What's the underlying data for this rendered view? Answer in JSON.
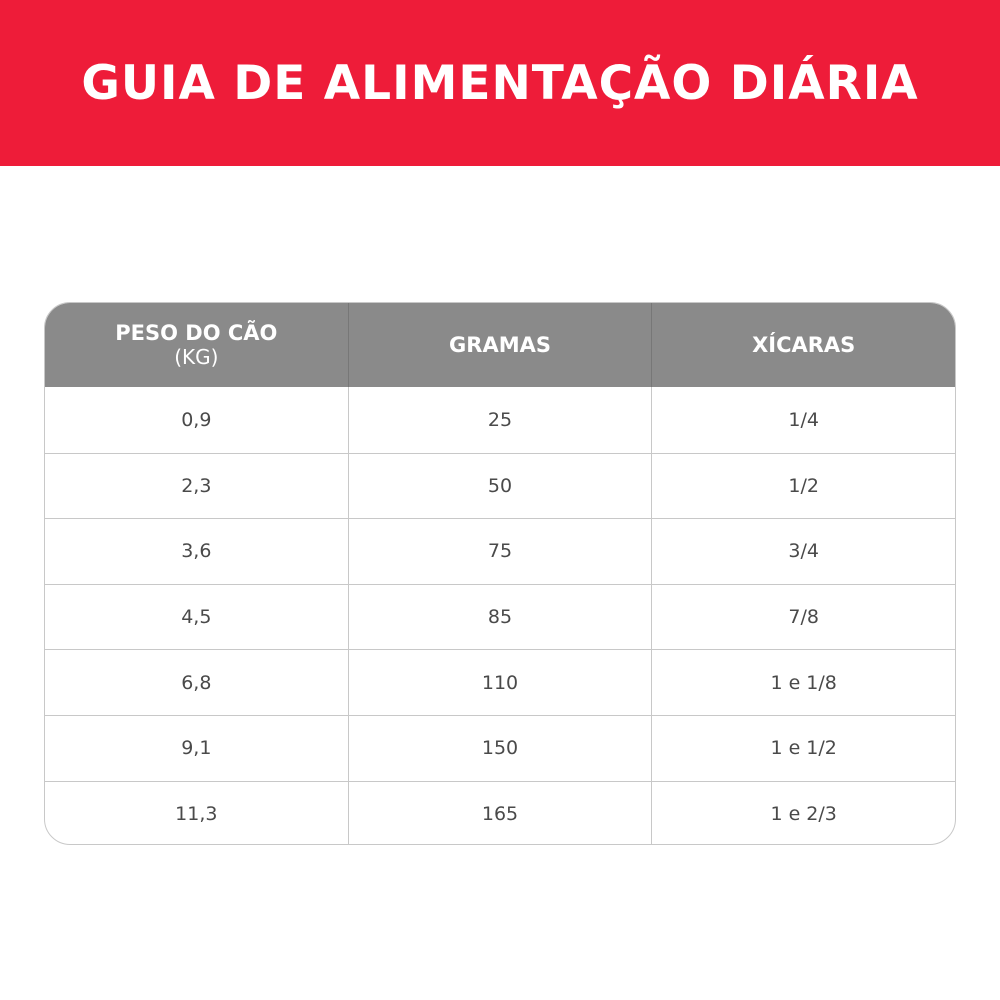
{
  "title": "GUIA DE ALIMENTAÇÃO DIÁRIA",
  "colors": {
    "banner": "#ee1c39",
    "header": "#8a8a8a"
  },
  "table": {
    "headers": [
      {
        "main": "PESO DO CÃO",
        "sub": "(KG)"
      },
      {
        "main": "GRAMAS",
        "sub": ""
      },
      {
        "main": "XÍCARAS",
        "sub": ""
      }
    ],
    "rows": [
      [
        "0,9",
        "25",
        "1/4"
      ],
      [
        "2,3",
        "50",
        "1/2"
      ],
      [
        "3,6",
        "75",
        "3/4"
      ],
      [
        "4,5",
        "85",
        "7/8"
      ],
      [
        "6,8",
        "110",
        "1 e 1/8"
      ],
      [
        "9,1",
        "150",
        "1 e 1/2"
      ],
      [
        "11,3",
        "165",
        "1 e 2/3"
      ]
    ]
  }
}
